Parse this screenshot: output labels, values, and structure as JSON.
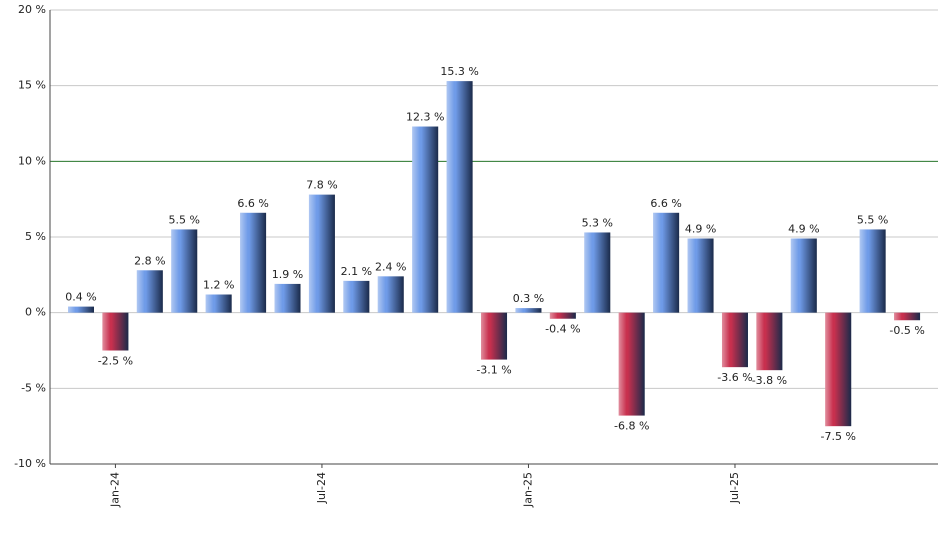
{
  "chart_data": {
    "type": "bar",
    "categories": [
      null,
      "Jan-24",
      null,
      null,
      null,
      null,
      null,
      "Jul-24",
      null,
      null,
      null,
      null,
      null,
      "Jan-25",
      null,
      null,
      null,
      null,
      null,
      "Jul-25",
      null,
      null,
      null,
      null,
      null
    ],
    "values": [
      0.4,
      -2.5,
      2.8,
      5.5,
      1.2,
      6.6,
      1.9,
      7.8,
      2.1,
      2.4,
      12.3,
      15.3,
      -3.1,
      0.3,
      -0.4,
      5.3,
      -6.8,
      6.6,
      4.9,
      -3.6,
      -3.8,
      4.9,
      -7.5,
      5.5,
      -0.5
    ],
    "value_labels": [
      "0.4 %",
      "-2.5 %",
      "2.8 %",
      "5.5 %",
      "1.2 %",
      "6.6 %",
      "1.9 %",
      "7.8 %",
      "2.1 %",
      "2.4 %",
      "12.3 %",
      "15.3 %",
      "-3.1 %",
      "0.3 %",
      "-0.4 %",
      "5.3 %",
      "-6.8 %",
      "6.6 %",
      "4.9 %",
      "-3.6 %",
      "-3.8 %",
      "4.9 %",
      "-7.5 %",
      "5.5 %",
      "-0.5 %"
    ],
    "positive_color": "#6f9be8",
    "negative_color": "#c8304e",
    "reference_line": 10,
    "reference_color": "#2e7d32",
    "ylim": [
      -10,
      20
    ],
    "yticks": [
      {
        "value": -10,
        "label": "-10 %"
      },
      {
        "value": -5,
        "label": "-5 %"
      },
      {
        "value": 0,
        "label": "0 %"
      },
      {
        "value": 5,
        "label": "5 %"
      },
      {
        "value": 10,
        "label": "10 %"
      },
      {
        "value": 15,
        "label": "15 %"
      },
      {
        "value": 20,
        "label": "20 %"
      }
    ],
    "grid": true
  }
}
